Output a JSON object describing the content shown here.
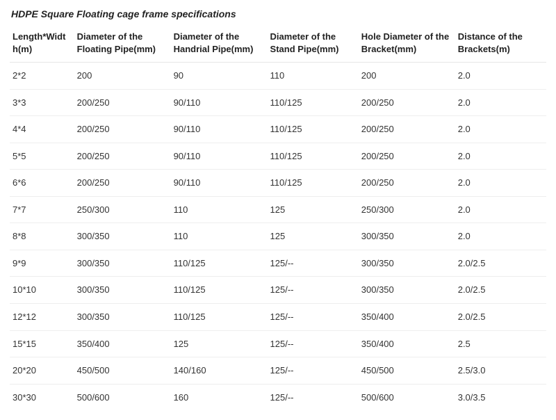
{
  "title": "HDPE Square Floating cage frame specifications",
  "table": {
    "columns": [
      "Length*Width(m)",
      "Diameter of the Floating Pipe(mm)",
      "Diameter of the Handrial Pipe(mm)",
      "Diameter of the Stand Pipe(mm)",
      "Hole Diameter of the Bracket(mm)",
      "Distance of the Brackets(m)"
    ],
    "rows": [
      [
        "2*2",
        "200",
        "90",
        "110",
        "200",
        "2.0"
      ],
      [
        "3*3",
        "200/250",
        "90/110",
        "110/125",
        "200/250",
        "2.0"
      ],
      [
        "4*4",
        "200/250",
        "90/110",
        "110/125",
        "200/250",
        "2.0"
      ],
      [
        "5*5",
        "200/250",
        "90/110",
        "110/125",
        "200/250",
        "2.0"
      ],
      [
        "6*6",
        "200/250",
        "90/110",
        "110/125",
        "200/250",
        "2.0"
      ],
      [
        "7*7",
        "250/300",
        "110",
        "125",
        "250/300",
        "2.0"
      ],
      [
        "8*8",
        "300/350",
        "110",
        "125",
        "300/350",
        "2.0"
      ],
      [
        "9*9",
        "300/350",
        "110/125",
        "125/--",
        "300/350",
        "2.0/2.5"
      ],
      [
        "10*10",
        "300/350",
        "110/125",
        "125/--",
        "300/350",
        "2.0/2.5"
      ],
      [
        "12*12",
        "300/350",
        "110/125",
        "125/--",
        "350/400",
        "2.0/2.5"
      ],
      [
        "15*15",
        "350/400",
        "125",
        "125/--",
        "350/400",
        "2.5"
      ],
      [
        "20*20",
        "450/500",
        "140/160",
        "125/--",
        "450/500",
        "2.5/3.0"
      ],
      [
        "30*30",
        "500/600",
        "160",
        "125/--",
        "500/600",
        "3.0/3.5"
      ]
    ],
    "col_widths_pct": [
      12,
      18,
      18,
      17,
      18,
      17
    ],
    "colors": {
      "text": "#333333",
      "heading": "#222222",
      "border": "#eeeeee",
      "background": "#ffffff"
    },
    "font_sizes": {
      "title": 14,
      "cell": 13
    }
  }
}
